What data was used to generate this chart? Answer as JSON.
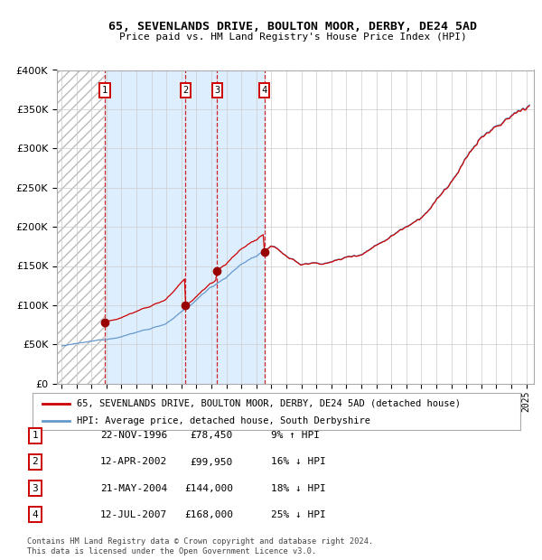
{
  "title": "65, SEVENLANDS DRIVE, BOULTON MOOR, DERBY, DE24 5AD",
  "subtitle": "Price paid vs. HM Land Registry's House Price Index (HPI)",
  "purchases": [
    {
      "num": 1,
      "date_f": 1996.896,
      "price": 78450
    },
    {
      "num": 2,
      "date_f": 2002.279,
      "price": 99950
    },
    {
      "num": 3,
      "date_f": 2004.387,
      "price": 144000
    },
    {
      "num": 4,
      "date_f": 2007.534,
      "price": 168000
    }
  ],
  "table_rows": [
    {
      "num": 1,
      "date": "22-NOV-1996",
      "price": "£78,450",
      "pct": "9%",
      "dir": "↑",
      "rel": "HPI"
    },
    {
      "num": 2,
      "date": "12-APR-2002",
      "price": "£99,950",
      "pct": "16%",
      "dir": "↓",
      "rel": "HPI"
    },
    {
      "num": 3,
      "date": "21-MAY-2004",
      "price": "£144,000",
      "pct": "18%",
      "dir": "↓",
      "rel": "HPI"
    },
    {
      "num": 4,
      "date": "12-JUL-2007",
      "price": "£168,000",
      "pct": "25%",
      "dir": "↓",
      "rel": "HPI"
    }
  ],
  "legend_line1": "65, SEVENLANDS DRIVE, BOULTON MOOR, DERBY, DE24 5AD (detached house)",
  "legend_line2": "HPI: Average price, detached house, South Derbyshire",
  "footer1": "Contains HM Land Registry data © Crown copyright and database right 2024.",
  "footer2": "This data is licensed under the Open Government Licence v3.0.",
  "hpi_color": "#6699cc",
  "price_color": "#cc0000",
  "bg_shaded_color": "#ddeeff",
  "ylim": [
    0,
    400000
  ],
  "yticks": [
    0,
    50000,
    100000,
    150000,
    200000,
    250000,
    300000,
    350000,
    400000
  ],
  "xstart": 1993.7,
  "xend": 2025.5
}
